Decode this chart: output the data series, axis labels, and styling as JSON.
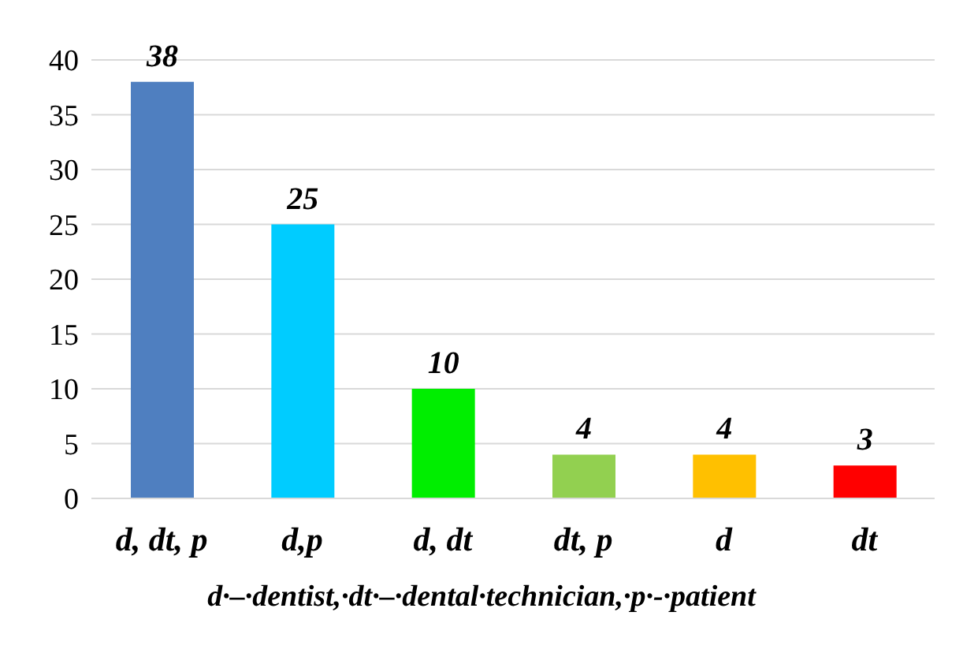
{
  "chart_data": {
    "type": "bar",
    "xlabel": "d·–·dentist,·dt·–·dental·technician,·p·-·patient",
    "categories": [
      "d, dt, p",
      "d,p",
      "d, dt",
      "dt, p",
      "d",
      "dt"
    ],
    "values": [
      38,
      25,
      10,
      4,
      4,
      3
    ],
    "colors": [
      "#4f7fc0",
      "#00ccff",
      "#00ee00",
      "#92d050",
      "#ffc000",
      "#ff0000"
    ],
    "ylim": [
      0,
      40
    ],
    "yticks": [
      0,
      5,
      10,
      15,
      20,
      25,
      30,
      35,
      40
    ],
    "grid": "y",
    "data_labels": true
  }
}
